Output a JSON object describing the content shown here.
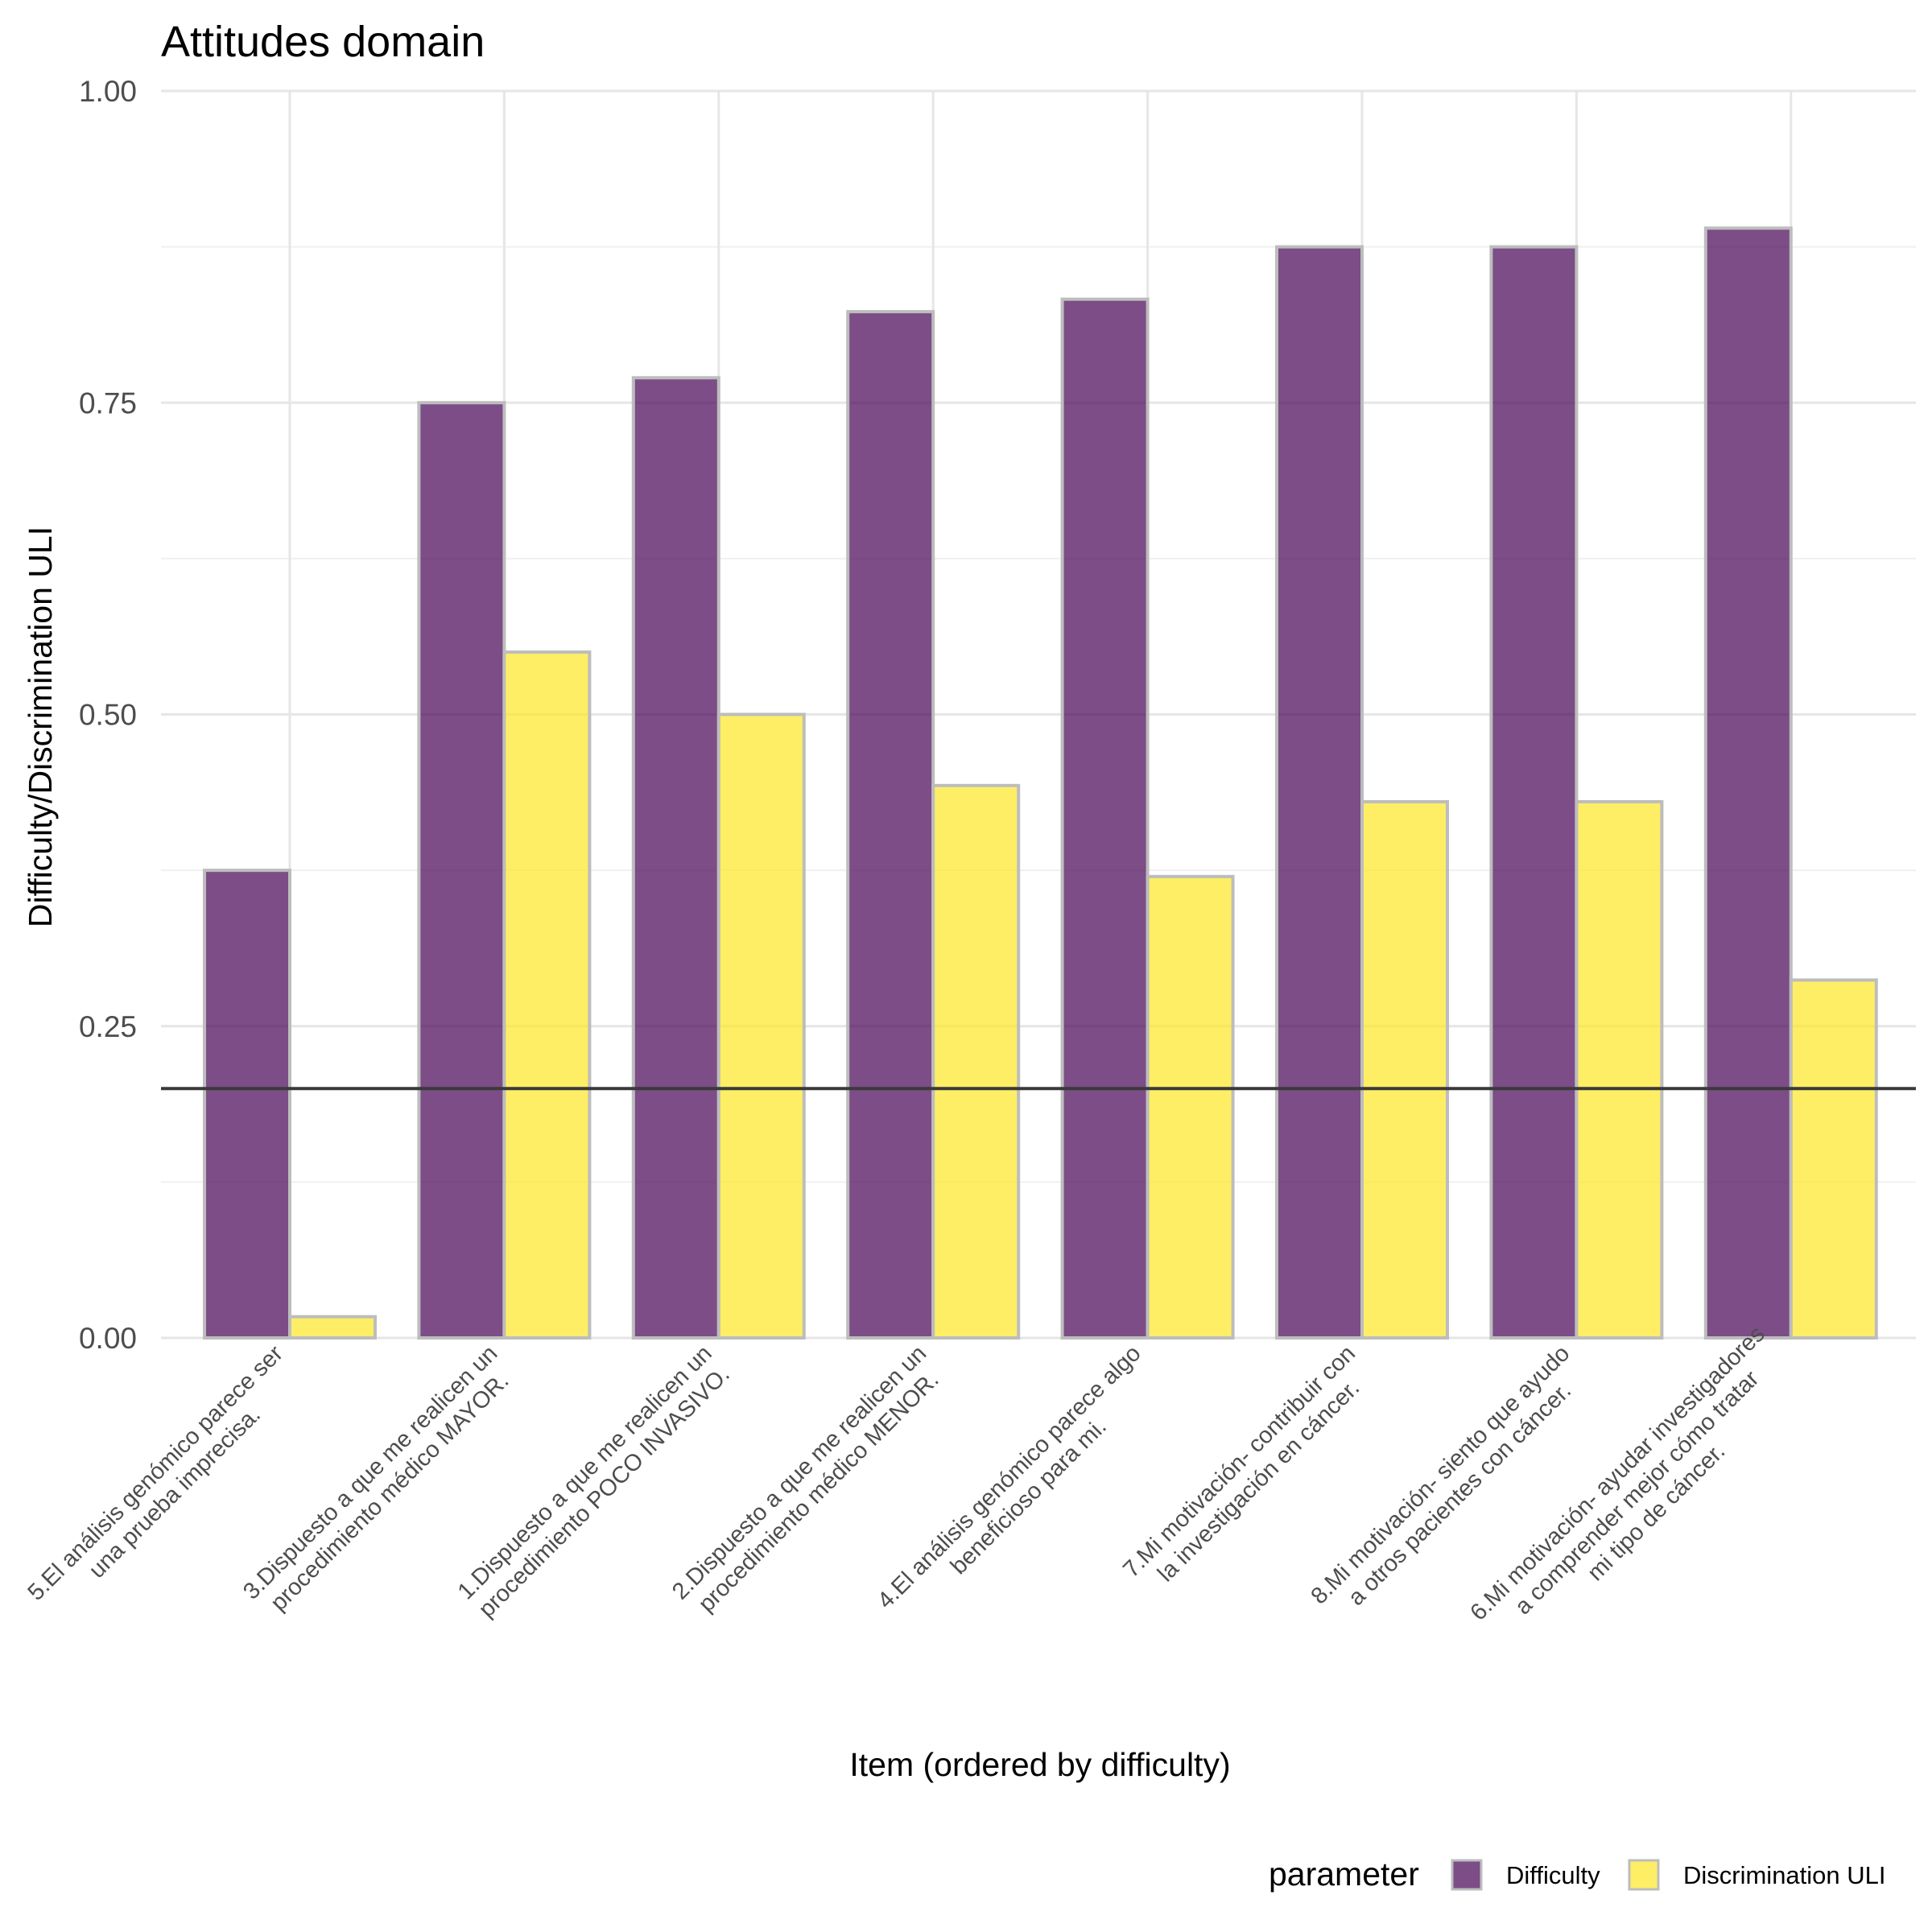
{
  "chart_data": {
    "type": "bar",
    "title": "Attitudes domain",
    "xlabel": "Item (ordered by difficulty)",
    "ylabel": "Difficulty/Discrimination ULI",
    "ylim": [
      0,
      1
    ],
    "yticks": [
      "0.00",
      "0.25",
      "0.50",
      "0.75",
      "1.00"
    ],
    "reference_line": 0.2,
    "grid": true,
    "legend_position": "bottom-right",
    "legend_title": "parameter",
    "categories": [
      [
        "5.El análisis genómico parece ser",
        "una prueba imprecisa."
      ],
      [
        "3.Dispuesto a que me realicen un",
        "procedimiento médico MAYOR."
      ],
      [
        "1.Dispuesto a que me realicen un",
        "procedimiento POCO INVASIVO."
      ],
      [
        "2.Dispuesto a que me realicen un",
        "procedimiento médico MENOR."
      ],
      [
        "4.El análisis genómico parece algo",
        "beneficioso para mi."
      ],
      [
        "7.Mi motivación- contribuir con",
        "la investigación en cáncer."
      ],
      [
        "8.Mi motivación- siento que ayudo",
        "a otros pacientes con cáncer."
      ],
      [
        "6.Mi motivación- ayudar investigadores",
        "a comprender mejor cómo tratar",
        "mi tipo de cáncer."
      ]
    ],
    "series": [
      {
        "name": "Difficulty",
        "color": "#440154",
        "values": [
          0.375,
          0.75,
          0.77,
          0.823,
          0.833,
          0.875,
          0.875,
          0.89
        ]
      },
      {
        "name": "Discrimination ULI",
        "color": "#FDE725",
        "values": [
          0.017,
          0.55,
          0.5,
          0.443,
          0.37,
          0.43,
          0.43,
          0.287
        ]
      }
    ]
  }
}
